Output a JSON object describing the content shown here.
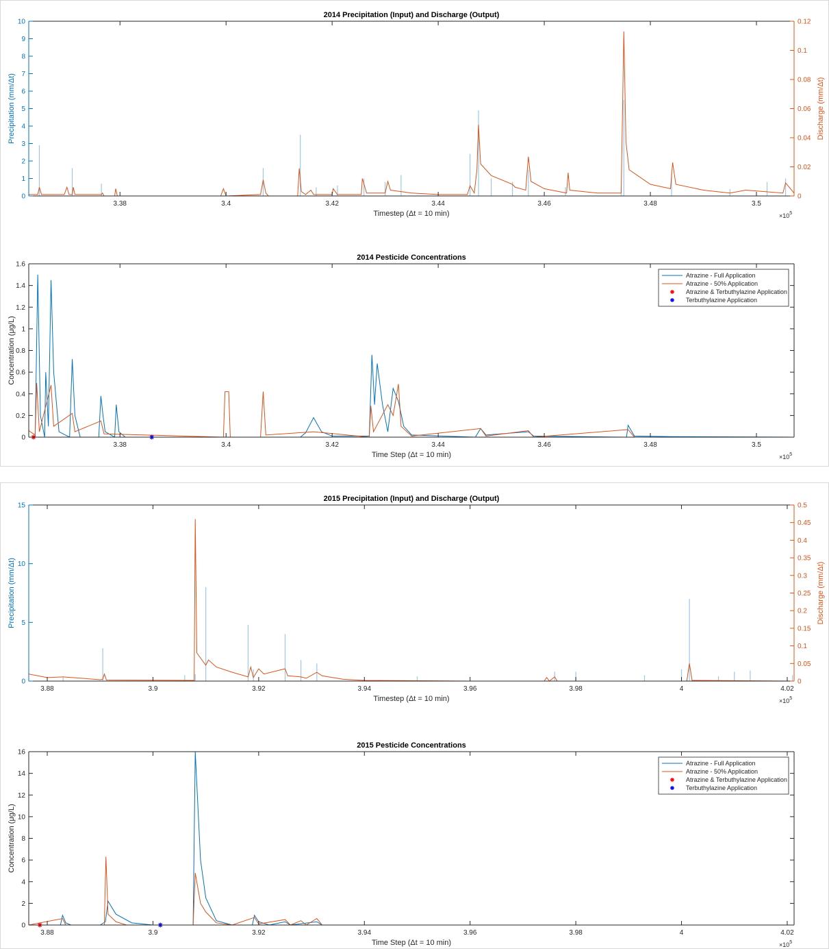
{
  "chart_data": [
    {
      "type": "line",
      "title": "2014 Precipitation (Input) and Discharge (Output)",
      "xlabel": "Timestep (Δt = 10 min)",
      "ylabel": "Precipitation (mm/Δt)",
      "y2label": "Discharge (mm/Δt)",
      "x_multiplier": "×10",
      "x_multiplier_exp": "5",
      "y_axis_color": "#0072bd",
      "y2_axis_color": "#d95319",
      "xlim": [
        336280,
        350710
      ],
      "xticks": [
        {
          "value": 338000,
          "label": "3.38"
        },
        {
          "value": 340000,
          "label": "3.4"
        },
        {
          "value": 342000,
          "label": "3.42"
        },
        {
          "value": 344000,
          "label": "3.44"
        },
        {
          "value": 346000,
          "label": "3.46"
        },
        {
          "value": 348000,
          "label": "3.48"
        },
        {
          "value": 350000,
          "label": "3.5"
        }
      ],
      "ylim": [
        0,
        10
      ],
      "yticks": [
        0,
        1,
        2,
        3,
        4,
        5,
        6,
        7,
        8,
        9,
        10
      ],
      "y2lim": [
        0,
        0.12
      ],
      "y2ticks": [
        0,
        0.02,
        0.04,
        0.06,
        0.08,
        0.1,
        0.12
      ],
      "series": [
        {
          "type": "bar",
          "color": "#9cc8e8",
          "x": [
            336480,
            337100,
            337650,
            340700,
            341400,
            341700,
            342100,
            342600,
            343000,
            343300,
            344600,
            344760,
            345000,
            345400,
            345700,
            346400,
            347450,
            347500,
            348400,
            349500,
            350200,
            350550
          ],
          "values": [
            2.9,
            1.6,
            0.7,
            1.6,
            3.5,
            0.5,
            0.6,
            1.0,
            0.8,
            1.2,
            2.4,
            4.9,
            1.0,
            0.8,
            1.5,
            0.5,
            0.5,
            5.5,
            1.3,
            0.4,
            0.8,
            1.0
          ]
        },
        {
          "type": "line",
          "color": "#d95319",
          "axis": "y2",
          "x": [
            336280,
            336450,
            336480,
            336520,
            336950,
            337000,
            337040,
            337100,
            337120,
            337150,
            337650,
            337670,
            337700,
            337900,
            337920,
            337950,
            339900,
            339950,
            340000,
            340650,
            340700,
            340750,
            340800,
            341350,
            341380,
            341420,
            341500,
            341600,
            341650,
            342000,
            342020,
            342100,
            342550,
            342570,
            342650,
            343000,
            343050,
            343100,
            343500,
            344000,
            344550,
            344600,
            344680,
            344730,
            344760,
            344800,
            345000,
            345400,
            345450,
            345650,
            345700,
            345750,
            346000,
            346420,
            346450,
            346480,
            347000,
            347450,
            347500,
            347540,
            347600,
            348000,
            348380,
            348420,
            348480,
            349000,
            349500,
            349800,
            350500,
            350550,
            350710
          ],
          "values": [
            0.001,
            0.001,
            0.006,
            0.001,
            0.001,
            0.006,
            0.001,
            0.001,
            0.006,
            0.001,
            0.001,
            0.002,
            0.0,
            0.0,
            0.005,
            0.0,
            0.0,
            0.005,
            0.0,
            0.001,
            0.011,
            0.002,
            0.0,
            0.0,
            0.019,
            0.003,
            0.001,
            0.004,
            0.001,
            0.001,
            0.005,
            0.001,
            0.001,
            0.012,
            0.002,
            0.002,
            0.01,
            0.004,
            0.002,
            0.001,
            0.001,
            0.007,
            0.002,
            0.018,
            0.049,
            0.022,
            0.014,
            0.008,
            0.006,
            0.004,
            0.027,
            0.01,
            0.005,
            0.002,
            0.016,
            0.004,
            0.002,
            0.002,
            0.113,
            0.037,
            0.018,
            0.008,
            0.005,
            0.023,
            0.008,
            0.004,
            0.002,
            0.004,
            0.002,
            0.009,
            0.002
          ]
        }
      ]
    },
    {
      "type": "line",
      "title": "2014 Pesticide Concentrations",
      "xlabel": "Time Step (Δt = 10 min)",
      "ylabel": "Concentration (μg/L)",
      "x_multiplier": "×10",
      "x_multiplier_exp": "5",
      "legend": "northeast",
      "xlim": [
        336280,
        350710
      ],
      "xticks": [
        {
          "value": 338000,
          "label": "3.38"
        },
        {
          "value": 340000,
          "label": "3.4"
        },
        {
          "value": 342000,
          "label": "3.42"
        },
        {
          "value": 344000,
          "label": "3.44"
        },
        {
          "value": 346000,
          "label": "3.46"
        },
        {
          "value": 348000,
          "label": "3.48"
        },
        {
          "value": 350000,
          "label": "3.5"
        }
      ],
      "ylim": [
        0,
        1.6
      ],
      "yticks": [
        0,
        0.2,
        0.4,
        0.6,
        0.8,
        1,
        1.2,
        1.4,
        1.6
      ],
      "series": [
        {
          "type": "line",
          "name": "Atrazine - Full Application",
          "color": "#0072bd",
          "x": [
            336280,
            336400,
            336450,
            336500,
            336580,
            336600,
            336650,
            336700,
            336750,
            336850,
            337050,
            337100,
            337150,
            337250,
            337600,
            337640,
            337680,
            337720,
            337900,
            337930,
            337980,
            338100,
            341400,
            341500,
            341650,
            341800,
            342000,
            342700,
            342750,
            342800,
            342850,
            342950,
            343050,
            343150,
            343250,
            343350,
            343500,
            344700,
            344800,
            344900,
            345700,
            345800,
            347550,
            347580,
            347700,
            348400,
            350710
          ],
          "values": [
            0,
            0,
            1.5,
            0.2,
            0.0,
            0.6,
            0.1,
            1.45,
            0.6,
            0.05,
            0.0,
            0.72,
            0.2,
            0,
            0,
            0.38,
            0.2,
            0.05,
            0,
            0.3,
            0.05,
            0,
            0,
            0.04,
            0.18,
            0.05,
            0.01,
            0.01,
            0.76,
            0.3,
            0.68,
            0.3,
            0.05,
            0.45,
            0.33,
            0.1,
            0.02,
            0.0,
            0.08,
            0.02,
            0.05,
            0.01,
            0.0,
            0.11,
            0.01,
            0.005,
            0
          ]
        },
        {
          "type": "line",
          "name": "Atrazine - 50% Application",
          "color": "#d95319",
          "x": [
            336280,
            336400,
            336430,
            336480,
            336700,
            336750,
            337100,
            337150,
            337640,
            337700,
            339950,
            339980,
            340050,
            340080,
            340650,
            340700,
            340750,
            341650,
            342700,
            342730,
            342780,
            343050,
            343150,
            343250,
            343300,
            343500,
            344800,
            344900,
            345700,
            345800,
            347580,
            347700,
            350710
          ],
          "values": [
            0.06,
            0.02,
            0.5,
            0.05,
            0.48,
            0.1,
            0.22,
            0.05,
            0.15,
            0.03,
            0.0,
            0.42,
            0.42,
            0,
            0,
            0.42,
            0.02,
            0.05,
            0.0,
            0.29,
            0.05,
            0.3,
            0.2,
            0.49,
            0.1,
            0.01,
            0.08,
            0.01,
            0.06,
            0,
            0.07,
            0,
            0
          ]
        },
        {
          "type": "scatter",
          "name": "Atrazine & Terbuthylazine Application",
          "color": "#ff0000",
          "x": [
            336370
          ],
          "values": [
            0
          ]
        },
        {
          "type": "scatter",
          "name": "Terbuthylazine Application",
          "color": "#0000ff",
          "x": [
            338600
          ],
          "values": [
            0
          ]
        }
      ]
    },
    {
      "type": "line",
      "title": "2015 Precipitation (Input) and Discharge (Output)",
      "xlabel": "Timestep (Δt = 10 min)",
      "ylabel": "Precipitation (mm/Δt)",
      "y2label": "Discharge (mm/Δt)",
      "x_multiplier": "×10",
      "x_multiplier_exp": "5",
      "y_axis_color": "#0072bd",
      "y2_axis_color": "#d95319",
      "xlim": [
        387650,
        402130
      ],
      "xticks": [
        {
          "value": 388000,
          "label": "3.88"
        },
        {
          "value": 390000,
          "label": "3.9"
        },
        {
          "value": 392000,
          "label": "3.92"
        },
        {
          "value": 394000,
          "label": "3.94"
        },
        {
          "value": 396000,
          "label": "3.96"
        },
        {
          "value": 398000,
          "label": "3.98"
        },
        {
          "value": 400000,
          "label": "4"
        },
        {
          "value": 402000,
          "label": "4.02"
        }
      ],
      "ylim": [
        0,
        15
      ],
      "yticks": [
        0,
        5,
        10,
        15
      ],
      "y2lim": [
        0,
        0.5
      ],
      "y2ticks": [
        0,
        0.05,
        0.1,
        0.15,
        0.2,
        0.25,
        0.3,
        0.35,
        0.4,
        0.45,
        0.5
      ],
      "series": [
        {
          "type": "bar",
          "color": "#9cc8e8",
          "x": [
            388300,
            389050,
            390600,
            390800,
            391000,
            391800,
            391900,
            392500,
            392800,
            393100,
            395000,
            397600,
            398000,
            399300,
            400000,
            400150,
            400700,
            401000,
            401300,
            402100
          ],
          "values": [
            0.3,
            2.8,
            0.5,
            0.6,
            8.0,
            4.8,
            1.0,
            4.0,
            1.8,
            1.5,
            0.4,
            0.8,
            0.8,
            0.5,
            1.0,
            7.0,
            0.4,
            0.8,
            0.9,
            0.5
          ]
        },
        {
          "type": "line",
          "color": "#d95319",
          "axis": "y2",
          "x": [
            387650,
            388000,
            388300,
            389000,
            389050,
            389080,
            389120,
            390780,
            390800,
            390830,
            391000,
            391050,
            391200,
            391500,
            391800,
            391850,
            391900,
            392000,
            392100,
            392500,
            392550,
            392800,
            392900,
            393100,
            393200,
            393600,
            394000,
            396000,
            397400,
            397450,
            397500,
            397600,
            397650,
            400100,
            400150,
            400200,
            402130
          ],
          "values": [
            0.02,
            0.01,
            0.012,
            0.004,
            0.005,
            0.02,
            0.003,
            0.002,
            0.46,
            0.08,
            0.045,
            0.06,
            0.04,
            0.025,
            0.012,
            0.04,
            0.01,
            0.035,
            0.02,
            0.035,
            0.015,
            0.012,
            0.008,
            0.025,
            0.015,
            0.005,
            0.002,
            0.0,
            0.0,
            0.01,
            0.0,
            0.012,
            0.0,
            0.0,
            0.05,
            0.002,
            0.0
          ]
        }
      ]
    },
    {
      "type": "line",
      "title": "2015 Pesticide Concentrations",
      "xlabel": "Time Step (Δt = 10 min)",
      "ylabel": "Concentration (μg/L)",
      "x_multiplier": "×10",
      "x_multiplier_exp": "5",
      "legend": "northeast",
      "xlim": [
        387650,
        402130
      ],
      "xticks": [
        {
          "value": 388000,
          "label": "3.88"
        },
        {
          "value": 390000,
          "label": "3.9"
        },
        {
          "value": 392000,
          "label": "3.92"
        },
        {
          "value": 394000,
          "label": "3.94"
        },
        {
          "value": 396000,
          "label": "3.96"
        },
        {
          "value": 398000,
          "label": "3.98"
        },
        {
          "value": 400000,
          "label": "4"
        },
        {
          "value": 402000,
          "label": "4.02"
        }
      ],
      "ylim": [
        0,
        16
      ],
      "yticks": [
        0,
        2,
        4,
        6,
        8,
        10,
        12,
        14,
        16
      ],
      "series": [
        {
          "type": "line",
          "name": "Atrazine - Full Application",
          "color": "#0072bd",
          "x": [
            387650,
            388250,
            388290,
            388350,
            388450,
            389000,
            389100,
            389150,
            389300,
            389600,
            390000,
            390760,
            390800,
            390900,
            391000,
            391200,
            391500,
            391880,
            391920,
            392000,
            392200,
            392500,
            392600,
            393100,
            393200,
            402130
          ],
          "values": [
            0,
            0,
            0.9,
            0.2,
            0,
            0,
            0.3,
            2.2,
            1.0,
            0.2,
            0,
            0,
            16,
            6,
            2.5,
            0.4,
            0,
            0,
            0.9,
            0.3,
            0,
            0.3,
            0,
            0.3,
            0,
            0
          ]
        },
        {
          "type": "line",
          "name": "Atrazine - 50% Application",
          "color": "#d95319",
          "x": [
            387650,
            388290,
            388350,
            389080,
            389110,
            389150,
            389300,
            389500,
            390760,
            390800,
            390900,
            391000,
            391200,
            391500,
            391920,
            392000,
            392500,
            392600,
            392800,
            392900,
            393100,
            393200,
            402130
          ],
          "values": [
            0,
            0.6,
            0,
            0,
            6.3,
            1.0,
            0.3,
            0,
            0,
            4.8,
            2,
            1.2,
            0.2,
            0,
            0.7,
            0.1,
            0.5,
            0,
            0.4,
            0,
            0.6,
            0,
            0
          ]
        },
        {
          "type": "scatter",
          "name": "Atrazine & Terbuthylazine Application",
          "color": "#ff0000",
          "x": [
            387860
          ],
          "values": [
            0
          ]
        },
        {
          "type": "scatter",
          "name": "Terbuthylazine Application",
          "color": "#0000ff",
          "x": [
            390140
          ],
          "values": [
            0
          ]
        }
      ]
    }
  ]
}
